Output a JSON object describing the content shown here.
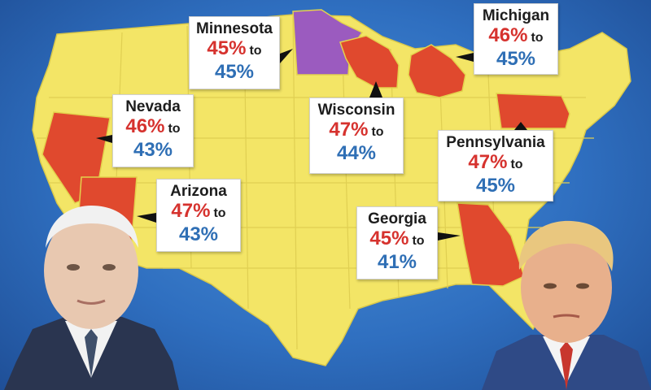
{
  "colors": {
    "background": "#2f6fc0",
    "land": "#f3e566",
    "state_lines": "#e3d24c",
    "republican_lead": "#e0492e",
    "tie": "#9b5bbf",
    "red_pct": "#d6322e",
    "blue_pct": "#2f6fb5"
  },
  "callouts": [
    {
      "state": "Minnesota",
      "red": "45%",
      "connector": "to",
      "blue": "45%"
    },
    {
      "state": "Michigan",
      "red": "46%",
      "connector": "to",
      "blue": "45%"
    },
    {
      "state": "Nevada",
      "red": "46%",
      "connector": "to",
      "blue": "43%"
    },
    {
      "state": "Wisconsin",
      "red": "47%",
      "connector": "to",
      "blue": "44%"
    },
    {
      "state": "Pennsylvania",
      "red": "47%",
      "connector": "to",
      "blue": "45%"
    },
    {
      "state": "Arizona",
      "red": "47%",
      "connector": "to",
      "blue": "43%"
    },
    {
      "state": "Georgia",
      "red": "45%",
      "connector": "to",
      "blue": "41%"
    }
  ],
  "portraits": [
    {
      "name": "left-candidate",
      "suit": "#2a3550",
      "tie": "#3f4f6a"
    },
    {
      "name": "right-candidate",
      "suit": "#2f4a86",
      "tie": "#c8362d"
    }
  ]
}
